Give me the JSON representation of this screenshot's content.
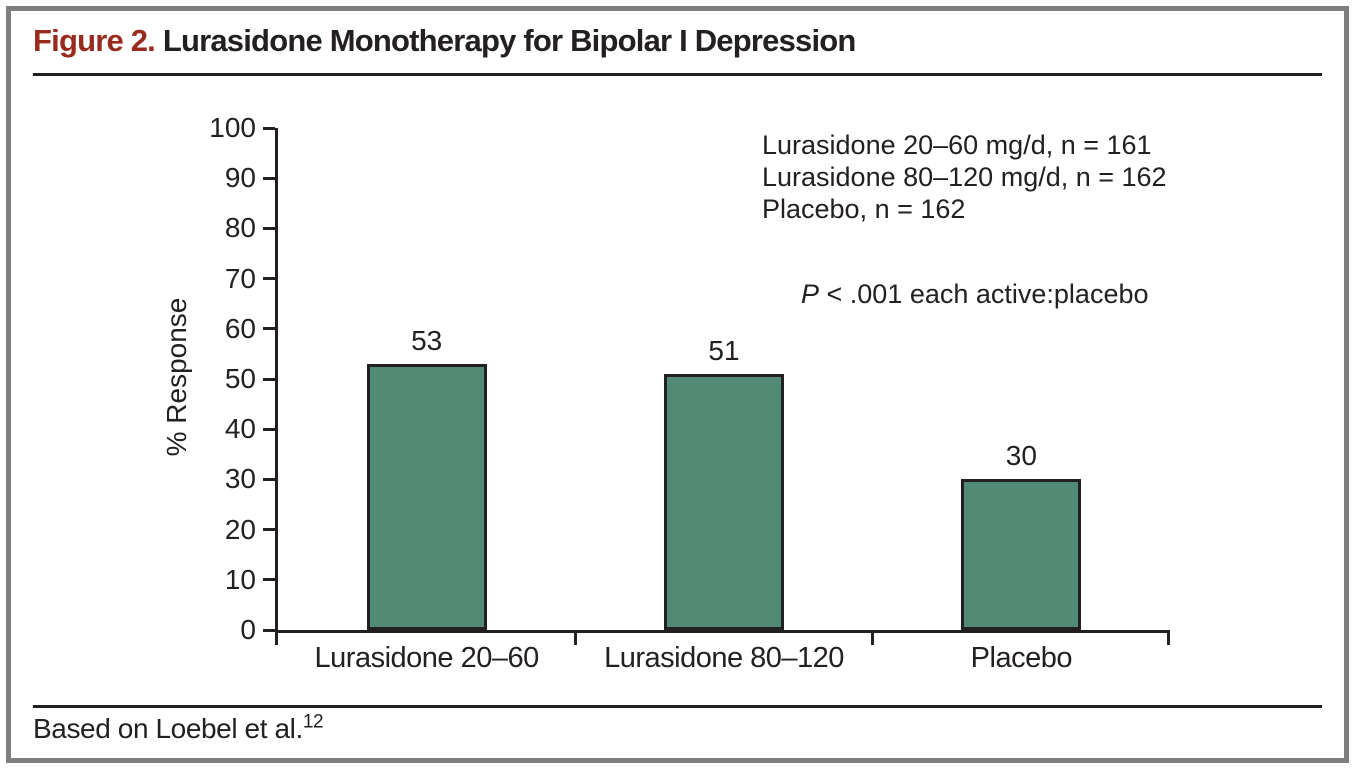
{
  "title": {
    "figure_label": "Figure 2.",
    "text": "Lurasidone Monotherapy for Bipolar I Depression"
  },
  "colors": {
    "figure_label_red": "#992a1e",
    "bar_fill": "#528b75",
    "axis_and_text": "#242021",
    "frame_border": "#7f7f7f"
  },
  "chart_data": {
    "type": "bar",
    "title": "",
    "categories": [
      "Lurasidone 20–60",
      "Lurasidone 80–120",
      "Placebo"
    ],
    "values": [
      53,
      51,
      30
    ],
    "xlabel": "",
    "ylabel": "% Response",
    "ylim": [
      0,
      100
    ],
    "yticks": [
      0,
      10,
      20,
      30,
      40,
      50,
      60,
      70,
      80,
      90,
      100
    ],
    "grid": false,
    "bar_color": "#528b75",
    "legend_position": "top-right",
    "legend_lines": [
      "Lurasidone 20–60 mg/d, n = 161",
      "Lurasidone 80–120 mg/d, n = 162",
      "Placebo, n = 162"
    ],
    "annotation": {
      "prefix_italic": "P",
      "text": " < .001 each active:placebo"
    }
  },
  "footer": {
    "text": "Based on Loebel et al.",
    "reference_superscript": "12"
  }
}
